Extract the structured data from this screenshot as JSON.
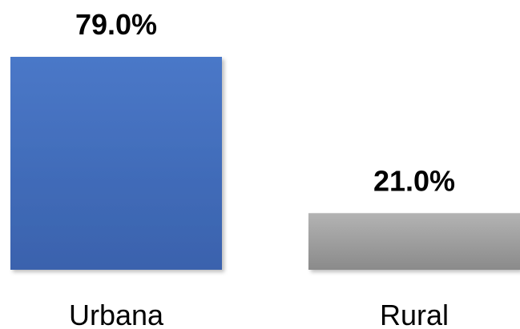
{
  "chart_data": {
    "type": "bar",
    "categories": [
      "Urbana",
      "Rural"
    ],
    "values": [
      79.0,
      21.0
    ],
    "data_labels": [
      "79.0%",
      "21.0%"
    ],
    "colors": [
      "#4472c4",
      "#a5a5a5"
    ],
    "title": "",
    "xlabel": "",
    "ylabel": "",
    "ylim": [
      0,
      79.0
    ],
    "grid": false,
    "legend": "none"
  }
}
